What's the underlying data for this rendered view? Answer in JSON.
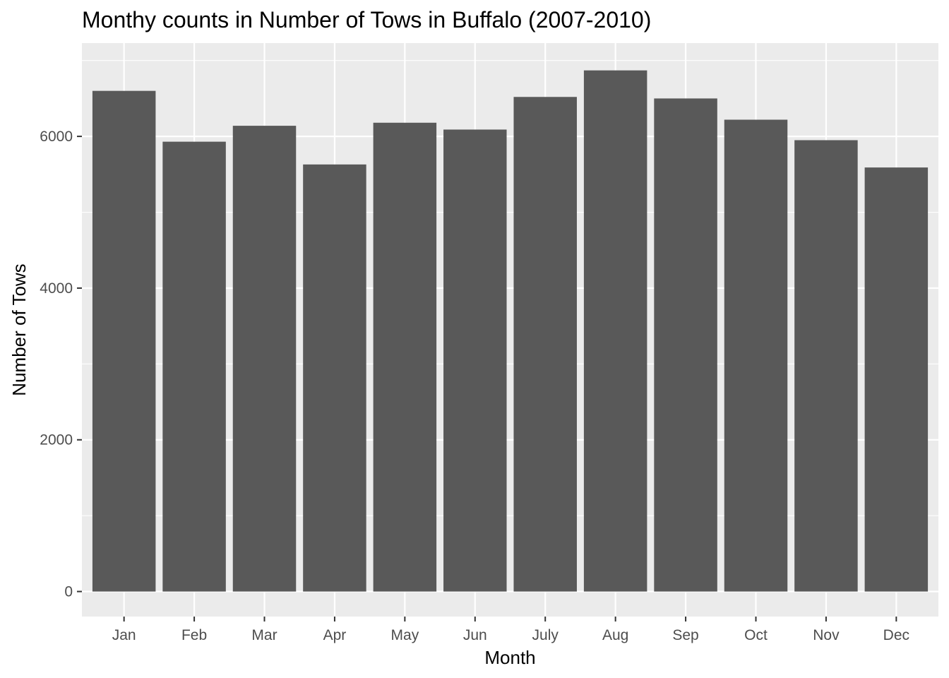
{
  "chart_data": {
    "type": "bar",
    "title": "Monthy counts in Number of Tows in Buffalo (2007-2010)",
    "xlabel": "Month",
    "ylabel": "Number of Tows",
    "categories": [
      "Jan",
      "Feb",
      "Mar",
      "Apr",
      "May",
      "Jun",
      "July",
      "Aug",
      "Sep",
      "Oct",
      "Nov",
      "Dec"
    ],
    "values": [
      6600,
      5930,
      6140,
      5630,
      6180,
      6090,
      6520,
      6870,
      6500,
      6220,
      5950,
      5590
    ],
    "yticks": [
      0,
      2000,
      4000,
      6000
    ],
    "ylim": [
      -330,
      7230
    ],
    "grid": true,
    "colors": {
      "bar": "#595959",
      "panel": "#ebebeb",
      "grid": "#ffffff"
    }
  }
}
